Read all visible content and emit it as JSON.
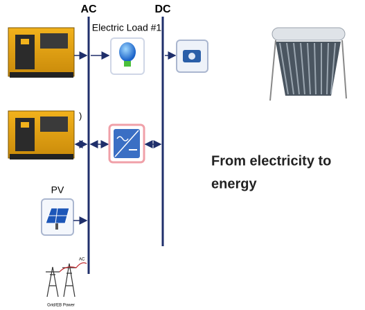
{
  "labels": {
    "ac_bus": "AC",
    "dc_bus": "DC",
    "load": "Electric Load #1",
    "genset_note": ")",
    "pv": "PV",
    "grid_ac": "AC",
    "grid": "Grid/EB Power"
  },
  "caption": {
    "line1": "From electricity to",
    "line2": "energy"
  }
}
